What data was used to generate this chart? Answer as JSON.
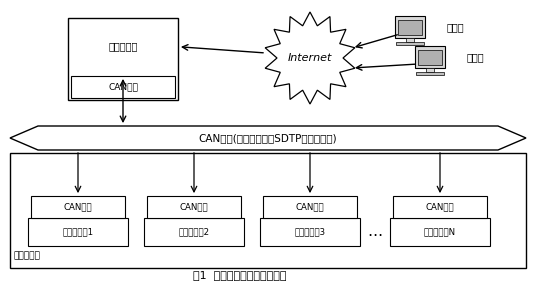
{
  "title": "图1  多支点触发系统结构框图",
  "bg_color": "#ffffff",
  "internet_label": "Internet",
  "network_source_top": "网络触发源",
  "network_source_bottom": "CAN接口",
  "can_bus_label": "CAN总线(传输符合总线SDTP协议数据帧)",
  "triggered_module_label": "被触发模块",
  "can_label": "CAN接口",
  "devices": [
    "被触发设备1",
    "被触发设备2",
    "被触发设备3",
    "被触发设备N"
  ],
  "control_labels": [
    "控制台",
    "控制台"
  ]
}
